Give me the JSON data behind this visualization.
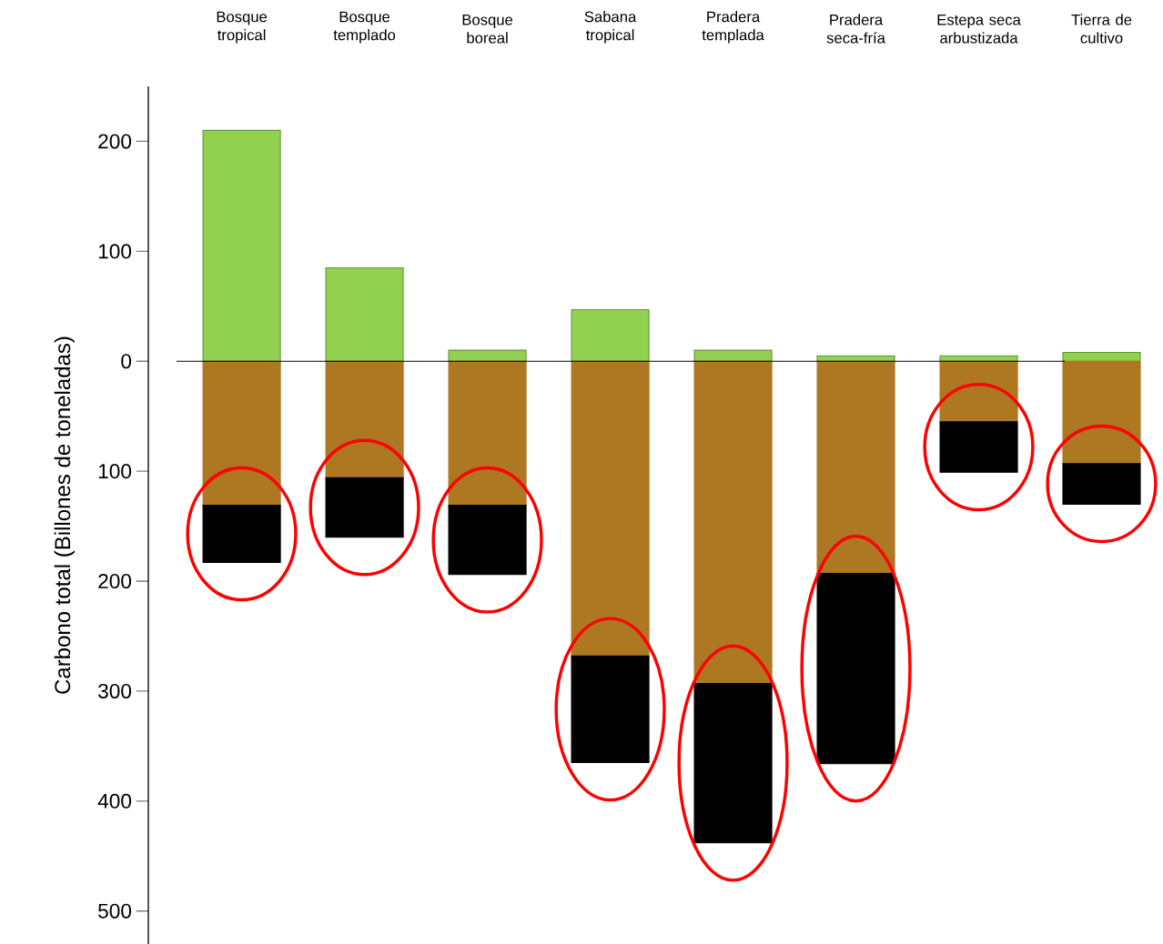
{
  "chart_data": {
    "type": "bar",
    "ylabel": "Carbono total (Billones  de toneladas)",
    "categories": [
      "Bosque tropical",
      "Bosque templado",
      "Bosque boreal",
      "Sabana tropical",
      "Pradera templada",
      "Pradera seca-fría",
      "Estepa seca arbustizada",
      "Tierra de cultivo"
    ],
    "stacked": true,
    "series": [
      {
        "color": "#92d050",
        "values": [
          210,
          85,
          10,
          47,
          10,
          5,
          5,
          8
        ]
      },
      {
        "color": "#ae7722",
        "values": [
          -131,
          -106,
          -131,
          -268,
          -293,
          -193,
          -55,
          -93
        ]
      },
      {
        "color": "#000000",
        "values": [
          -52,
          -54,
          -63,
          -97,
          -145,
          -173,
          -46,
          -37
        ]
      }
    ],
    "ylim": [
      -530,
      250
    ],
    "yticks": [
      {
        "value": -500,
        "label": "500"
      },
      {
        "value": -400,
        "label": "400"
      },
      {
        "value": -300,
        "label": "300"
      },
      {
        "value": -200,
        "label": "200"
      },
      {
        "value": -100,
        "label": "100"
      },
      0,
      100,
      200
    ]
  }
}
